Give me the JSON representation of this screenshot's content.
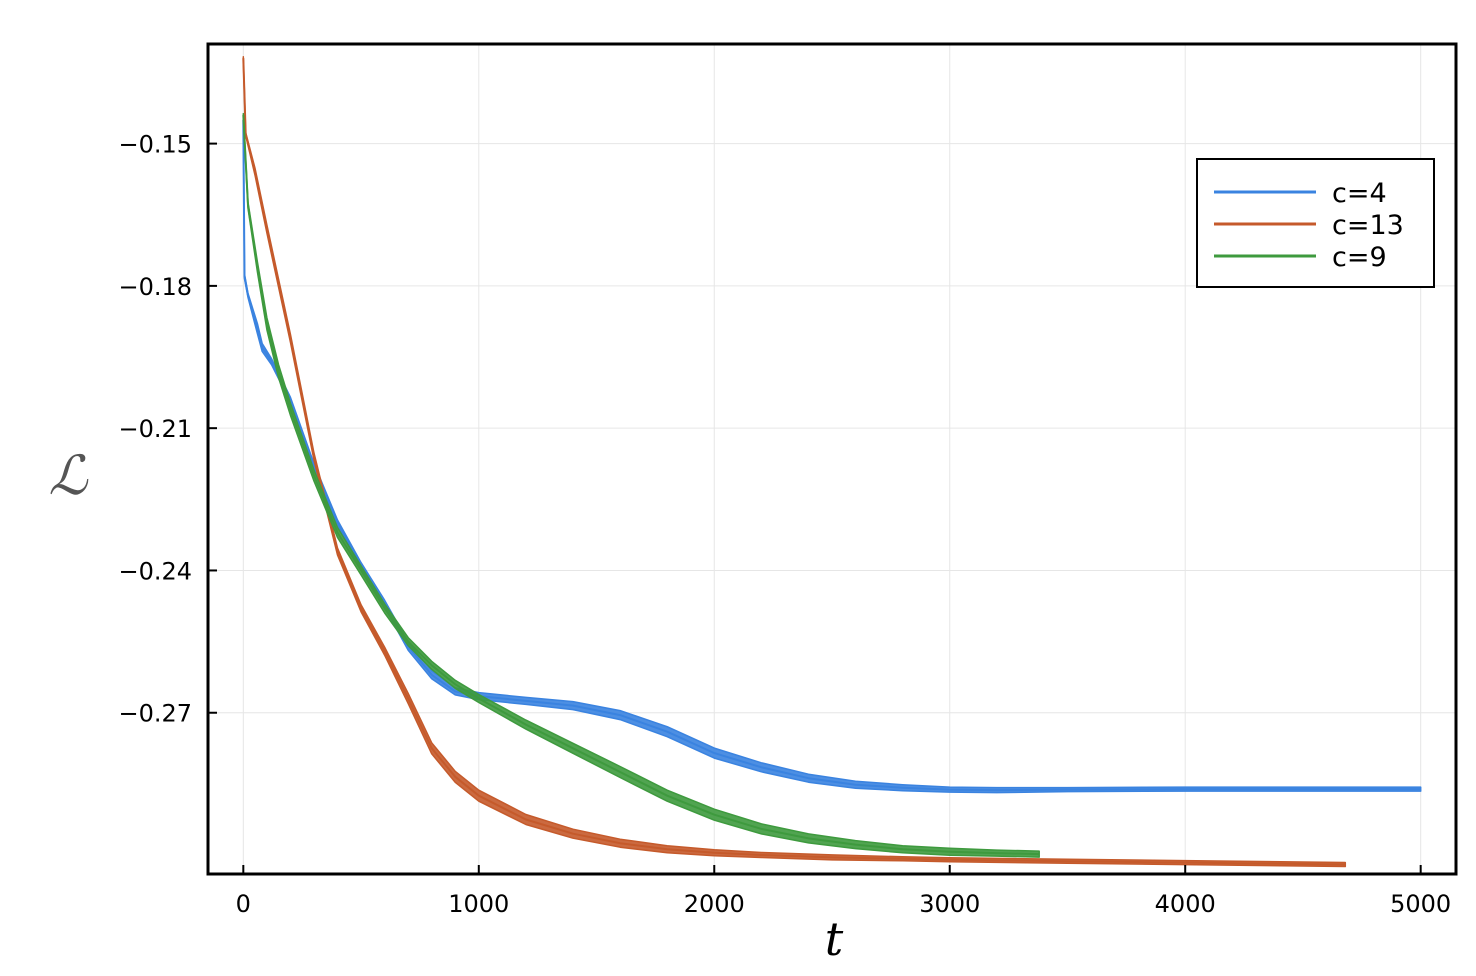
{
  "chart_data": {
    "type": "line",
    "xlabel": "t",
    "ylabel": "ℒ",
    "xlim": [
      -150,
      5150
    ],
    "ylim": [
      -0.304,
      -0.129
    ],
    "xticks": [
      0,
      1000,
      2000,
      3000,
      4000,
      5000
    ],
    "xtick_labels": [
      "0",
      "1000",
      "2000",
      "3000",
      "4000",
      "5000"
    ],
    "yticks": [
      -0.15,
      -0.18,
      -0.21,
      -0.24,
      -0.27
    ],
    "ytick_labels": [
      "−0.15",
      "−0.18",
      "−0.21",
      "−0.24",
      "−0.27"
    ],
    "grid": true,
    "legend_position": "top-right",
    "series": [
      {
        "name": "c=4",
        "color": "#3a83e0",
        "x": [
          0,
          5,
          20,
          60,
          80,
          120,
          200,
          300,
          400,
          500,
          600,
          700,
          800,
          900,
          1000,
          1200,
          1400,
          1600,
          1800,
          2000,
          2200,
          2400,
          2600,
          2800,
          3000,
          3200,
          3500,
          4000,
          4500,
          5000
        ],
        "y": [
          -0.145,
          -0.178,
          -0.182,
          -0.189,
          -0.193,
          -0.196,
          -0.204,
          -0.218,
          -0.23,
          -0.239,
          -0.247,
          -0.256,
          -0.262,
          -0.2655,
          -0.2665,
          -0.2675,
          -0.2685,
          -0.2705,
          -0.274,
          -0.2785,
          -0.2815,
          -0.2838,
          -0.2852,
          -0.2858,
          -0.2862,
          -0.2863,
          -0.2862,
          -0.2861,
          -0.2861,
          -0.2861
        ],
        "width": [
          3,
          5,
          4,
          10,
          8,
          6,
          5,
          5,
          6,
          6,
          7,
          8,
          8,
          7,
          7,
          7,
          8,
          9,
          10,
          10,
          9,
          8,
          7,
          6,
          5,
          5,
          4,
          4,
          4,
          4
        ]
      },
      {
        "name": "c=13",
        "color": "#c55a2b",
        "x": [
          0,
          10,
          50,
          100,
          200,
          300,
          400,
          500,
          600,
          700,
          800,
          900,
          1000,
          1200,
          1400,
          1600,
          1800,
          2000,
          2200,
          2500,
          2800,
          3000,
          3500,
          4000,
          4680
        ],
        "y": [
          -0.132,
          -0.148,
          -0.156,
          -0.168,
          -0.191,
          -0.216,
          -0.236,
          -0.248,
          -0.257,
          -0.267,
          -0.2775,
          -0.2835,
          -0.2875,
          -0.2925,
          -0.2955,
          -0.2975,
          -0.2988,
          -0.2995,
          -0.3,
          -0.3005,
          -0.3008,
          -0.301,
          -0.3013,
          -0.3016,
          -0.302
        ],
        "width": [
          3,
          3,
          7,
          8,
          8,
          7,
          7,
          7,
          8,
          10,
          11,
          11,
          11,
          10,
          9,
          8,
          7,
          6,
          5,
          5,
          4,
          4,
          4,
          4,
          4
        ]
      },
      {
        "name": "c=9",
        "color": "#3e9a3e",
        "x": [
          0,
          20,
          60,
          100,
          150,
          200,
          300,
          400,
          500,
          600,
          700,
          800,
          900,
          1000,
          1200,
          1400,
          1600,
          1800,
          2000,
          2200,
          2400,
          2600,
          2800,
          3000,
          3200,
          3380
        ],
        "y": [
          -0.144,
          -0.163,
          -0.176,
          -0.188,
          -0.198,
          -0.206,
          -0.22,
          -0.232,
          -0.24,
          -0.248,
          -0.255,
          -0.26,
          -0.264,
          -0.267,
          -0.2725,
          -0.2775,
          -0.2825,
          -0.2875,
          -0.2915,
          -0.2945,
          -0.2965,
          -0.2978,
          -0.2988,
          -0.2993,
          -0.2996,
          -0.2998
        ],
        "width": [
          3,
          6,
          10,
          12,
          13,
          12,
          11,
          10,
          9,
          9,
          8,
          8,
          8,
          8,
          9,
          10,
          11,
          11,
          11,
          10,
          9,
          8,
          7,
          7,
          6,
          6
        ]
      }
    ]
  }
}
